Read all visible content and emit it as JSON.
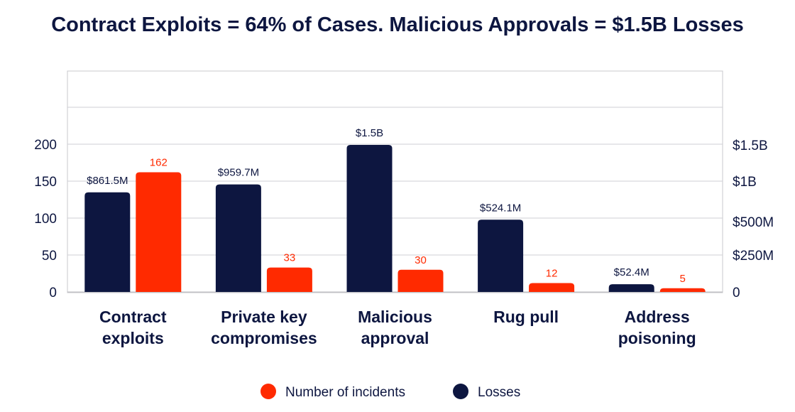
{
  "chart_data": {
    "type": "bar",
    "title": "Contract Exploits = 64% of Cases. Malicious Approvals = $1.5B Losses",
    "categories": [
      [
        "Contract",
        "exploits"
      ],
      [
        "Private key",
        "compromises"
      ],
      [
        "Malicious",
        "approval"
      ],
      [
        "Rug pull"
      ],
      [
        "Address",
        "poisoning"
      ]
    ],
    "series": [
      {
        "name": "Losses",
        "axis": "right",
        "color": "#0d1640",
        "values": [
          861.5,
          959.7,
          1500,
          524.1,
          52.4
        ],
        "labels": [
          "$861.5M",
          "$959.7M",
          "$1.5B",
          "$524.1M",
          "$52.4M"
        ]
      },
      {
        "name": "Number of incidents",
        "axis": "left",
        "color": "#ff2a00",
        "values": [
          162,
          33,
          30,
          12,
          5
        ],
        "labels": [
          "162",
          "33",
          "30",
          "12",
          "5"
        ]
      }
    ],
    "left_axis": {
      "ticks": [
        0,
        50,
        100,
        150,
        200
      ],
      "tick_labels": [
        "0",
        "50",
        "100",
        "150",
        "200"
      ],
      "range": [
        0,
        300
      ]
    },
    "right_axis": {
      "ticks": [
        0,
        250,
        500,
        1000,
        1500
      ],
      "tick_labels": [
        "0",
        "$250M",
        "$500M",
        "$1B",
        "$1.5B"
      ]
    },
    "legend": {
      "placement": "bottom",
      "order": [
        "Number of incidents",
        "Losses"
      ]
    },
    "grid": true
  }
}
